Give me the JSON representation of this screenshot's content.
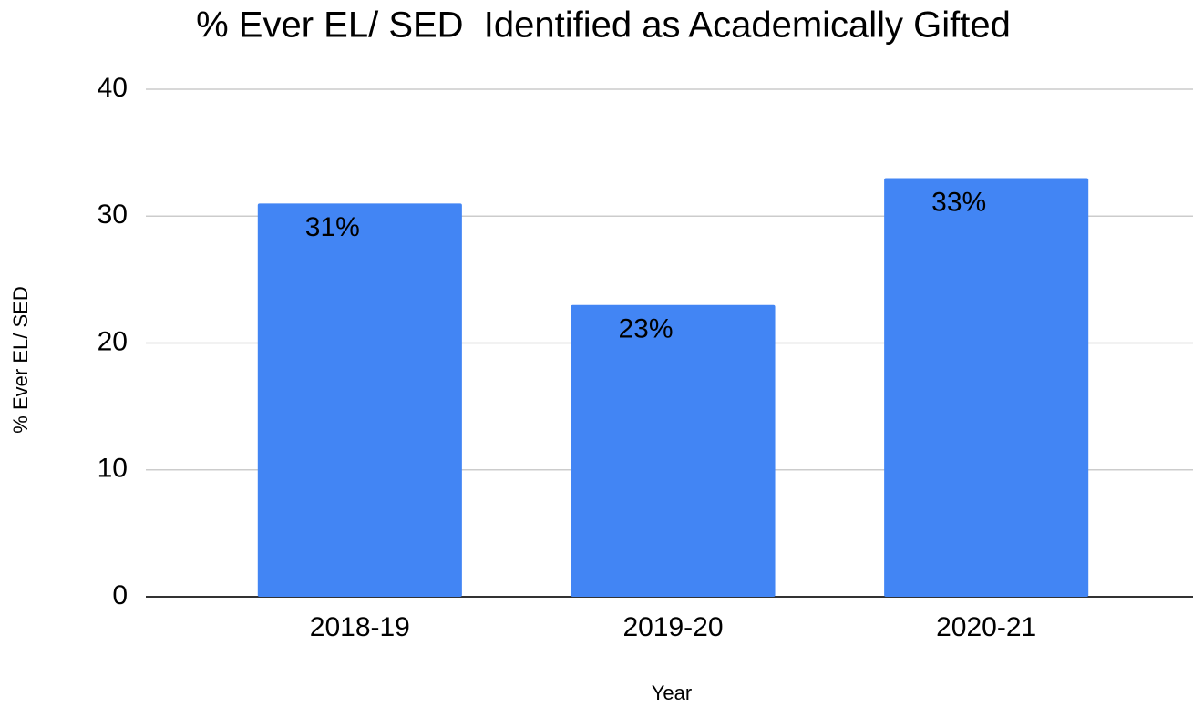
{
  "chart_data": {
    "type": "bar",
    "title": "% Ever EL/ SED  Identified as Academically Gifted",
    "categories": [
      "2018-19",
      "2019-20",
      "2020-21"
    ],
    "values": [
      31,
      23,
      33
    ],
    "value_labels": [
      "31%",
      "23%",
      "33%"
    ],
    "color": "#4285f4",
    "xlabel": "Year",
    "ylabel": "% Ever EL/ SED",
    "ylim": [
      0,
      40
    ],
    "yticks": [
      0,
      10,
      20,
      30,
      40
    ],
    "grid": true
  }
}
